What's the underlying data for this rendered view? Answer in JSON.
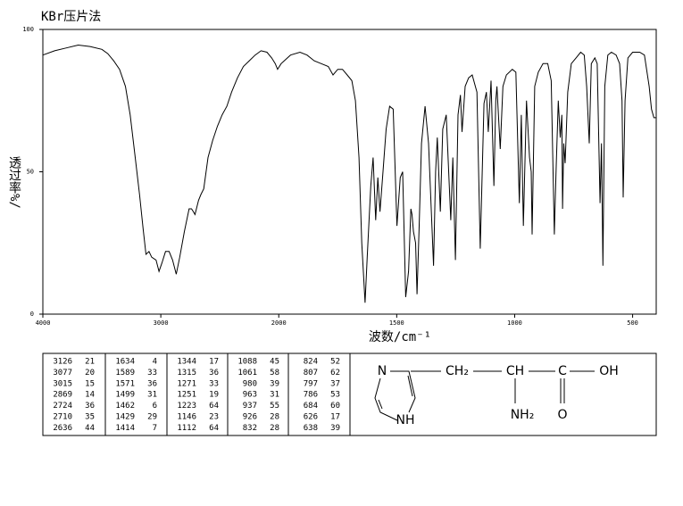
{
  "chart_data": {
    "type": "line",
    "title": "KBr压片法",
    "x_label": "波数/cm⁻¹",
    "y_label": "透过率%/",
    "xlim": [
      4000,
      400
    ],
    "x_break": 2000,
    "xticks": [
      4000,
      3000,
      2000,
      1500,
      1000,
      500
    ],
    "ylim": [
      0,
      100
    ],
    "yticks": [
      0,
      50,
      100
    ],
    "color": "#000000",
    "x": [
      4000,
      3900,
      3800,
      3700,
      3600,
      3500,
      3450,
      3400,
      3350,
      3300,
      3260,
      3220,
      3180,
      3150,
      3126,
      3100,
      3077,
      3040,
      3015,
      2990,
      2960,
      2930,
      2900,
      2869,
      2840,
      2800,
      2760,
      2740,
      2724,
      2710,
      2680,
      2660,
      2636,
      2600,
      2560,
      2520,
      2480,
      2440,
      2400,
      2350,
      2300,
      2250,
      2200,
      2150,
      2100,
      2060,
      2030,
      2010,
      1990,
      1950,
      1910,
      1880,
      1850,
      1820,
      1790,
      1770,
      1750,
      1730,
      1710,
      1690,
      1675,
      1660,
      1648,
      1634,
      1625,
      1610,
      1600,
      1589,
      1580,
      1571,
      1560,
      1545,
      1530,
      1515,
      1499,
      1485,
      1475,
      1462,
      1450,
      1440,
      1435,
      1429,
      1420,
      1414,
      1405,
      1395,
      1380,
      1365,
      1344,
      1335,
      1328,
      1315,
      1305,
      1290,
      1271,
      1262,
      1251,
      1240,
      1230,
      1223,
      1210,
      1195,
      1180,
      1160,
      1146,
      1130,
      1120,
      1112,
      1100,
      1088,
      1080,
      1075,
      1061,
      1050,
      1035,
      1010,
      995,
      980,
      972,
      963,
      950,
      937,
      930,
      926,
      915,
      900,
      880,
      860,
      845,
      832,
      828,
      824,
      815,
      807,
      800,
      797,
      792,
      786,
      775,
      760,
      740,
      720,
      705,
      695,
      684,
      675,
      660,
      650,
      638,
      632,
      626,
      618,
      605,
      590,
      570,
      555,
      545,
      540,
      532,
      520,
      500,
      470,
      450,
      430,
      420,
      410,
      400
    ],
    "values": [
      91,
      92.5,
      93.5,
      94.5,
      94,
      93,
      91.5,
      89,
      86,
      80,
      70,
      56,
      42,
      30,
      21,
      22,
      20,
      19,
      15,
      18,
      22,
      22,
      19,
      14,
      20,
      29,
      37,
      37,
      36,
      35,
      40,
      42,
      44,
      55,
      61,
      66,
      70,
      73,
      78,
      83,
      87,
      89,
      91,
      92.5,
      92,
      90,
      88,
      86,
      88,
      91,
      92,
      91,
      89,
      88,
      87,
      84,
      86,
      86,
      84,
      82,
      75,
      55,
      25,
      4,
      20,
      45,
      55,
      33,
      48,
      36,
      48,
      65,
      73,
      72,
      31,
      48,
      50,
      6,
      15,
      37,
      35,
      29,
      25,
      7,
      30,
      60,
      73,
      60,
      17,
      50,
      62,
      36,
      65,
      70,
      33,
      55,
      19,
      70,
      77,
      64,
      80,
      83,
      84,
      78,
      23,
      74,
      78,
      64,
      82,
      45,
      75,
      80,
      58,
      80,
      84,
      86,
      85,
      39,
      70,
      31,
      75,
      55,
      50,
      28,
      80,
      85,
      88,
      88,
      82,
      28,
      40,
      52,
      75,
      62,
      70,
      37,
      60,
      53,
      78,
      88,
      90,
      92,
      91,
      80,
      60,
      88,
      90,
      88,
      39,
      60,
      17,
      80,
      91,
      92,
      91,
      88,
      75,
      41,
      75,
      90,
      92,
      92,
      91,
      80,
      72,
      69,
      69
    ]
  },
  "peak_table": [
    [
      [
        3126,
        21
      ],
      [
        3077,
        20
      ],
      [
        3015,
        15
      ],
      [
        2869,
        14
      ],
      [
        2724,
        36
      ],
      [
        2710,
        35
      ],
      [
        2636,
        44
      ]
    ],
    [
      [
        1634,
        4
      ],
      [
        1589,
        33
      ],
      [
        1571,
        36
      ],
      [
        1499,
        31
      ],
      [
        1462,
        6
      ],
      [
        1429,
        29
      ],
      [
        1414,
        7
      ]
    ],
    [
      [
        1344,
        17
      ],
      [
        1315,
        36
      ],
      [
        1271,
        33
      ],
      [
        1251,
        19
      ],
      [
        1223,
        64
      ],
      [
        1146,
        23
      ],
      [
        1112,
        64
      ]
    ],
    [
      [
        1088,
        45
      ],
      [
        1061,
        58
      ],
      [
        980,
        39
      ],
      [
        963,
        31
      ],
      [
        937,
        55
      ],
      [
        926,
        28
      ],
      [
        832,
        28
      ]
    ],
    [
      [
        824,
        52
      ],
      [
        807,
        62
      ],
      [
        797,
        37
      ],
      [
        786,
        53
      ],
      [
        684,
        60
      ],
      [
        626,
        17
      ],
      [
        638,
        39
      ]
    ]
  ],
  "structure": {
    "ring_n": "N",
    "ring_nh": "NH",
    "ch2": "CH₂",
    "ch": "CH",
    "c": "C",
    "oh": "OH",
    "nh2": "NH₂",
    "o": "O"
  }
}
